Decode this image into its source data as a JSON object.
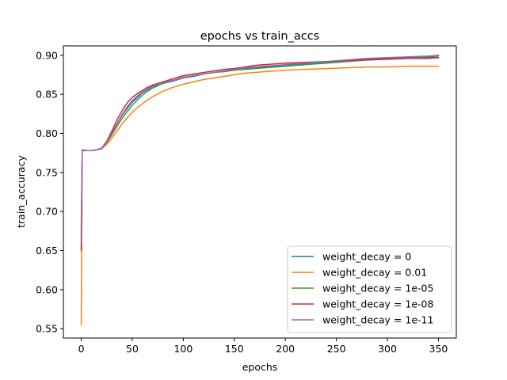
{
  "chart_data": {
    "type": "line",
    "title": "epochs vs train_accs",
    "xlabel": "epochs",
    "ylabel": "train_accuracy",
    "xlim": [
      -17.5,
      367.5
    ],
    "ylim": [
      0.538,
      0.912
    ],
    "xticks": [
      0,
      50,
      100,
      150,
      200,
      250,
      300,
      350
    ],
    "yticks": [
      0.55,
      0.6,
      0.65,
      0.7,
      0.75,
      0.8,
      0.85,
      0.9
    ],
    "ytick_labels": [
      "0.55",
      "0.60",
      "0.65",
      "0.70",
      "0.75",
      "0.80",
      "0.85",
      "0.90"
    ],
    "xtick_labels": [
      "0",
      "50",
      "100",
      "150",
      "200",
      "250",
      "300",
      "350"
    ],
    "grid": false,
    "legend_position": "lower-right",
    "series": [
      {
        "name": "weight_decay = 0",
        "color": "#1f77b4",
        "points": [
          [
            0,
            0.67
          ],
          [
            1,
            0.779
          ],
          [
            5,
            0.778
          ],
          [
            10,
            0.778
          ],
          [
            15,
            0.779
          ],
          [
            20,
            0.781
          ],
          [
            25,
            0.789
          ],
          [
            30,
            0.8
          ],
          [
            35,
            0.812
          ],
          [
            40,
            0.823
          ],
          [
            45,
            0.832
          ],
          [
            50,
            0.84
          ],
          [
            55,
            0.846
          ],
          [
            60,
            0.852
          ],
          [
            65,
            0.856
          ],
          [
            70,
            0.86
          ],
          [
            80,
            0.864
          ],
          [
            90,
            0.867
          ],
          [
            100,
            0.871
          ],
          [
            110,
            0.873
          ],
          [
            120,
            0.876
          ],
          [
            130,
            0.878
          ],
          [
            140,
            0.88
          ],
          [
            150,
            0.881
          ],
          [
            160,
            0.883
          ],
          [
            170,
            0.884
          ],
          [
            180,
            0.885
          ],
          [
            190,
            0.886
          ],
          [
            200,
            0.887
          ],
          [
            220,
            0.889
          ],
          [
            240,
            0.891
          ],
          [
            260,
            0.893
          ],
          [
            280,
            0.895
          ],
          [
            300,
            0.896
          ],
          [
            320,
            0.897
          ],
          [
            340,
            0.898
          ],
          [
            350,
            0.899
          ]
        ]
      },
      {
        "name": "weight_decay = 0.01",
        "color": "#ff7f0e",
        "points": [
          [
            0,
            0.555
          ],
          [
            1,
            0.778
          ],
          [
            5,
            0.778
          ],
          [
            10,
            0.778
          ],
          [
            15,
            0.779
          ],
          [
            20,
            0.78
          ],
          [
            25,
            0.786
          ],
          [
            30,
            0.794
          ],
          [
            35,
            0.803
          ],
          [
            40,
            0.812
          ],
          [
            45,
            0.82
          ],
          [
            50,
            0.827
          ],
          [
            55,
            0.833
          ],
          [
            60,
            0.838
          ],
          [
            65,
            0.843
          ],
          [
            70,
            0.847
          ],
          [
            80,
            0.854
          ],
          [
            90,
            0.859
          ],
          [
            100,
            0.863
          ],
          [
            110,
            0.866
          ],
          [
            120,
            0.869
          ],
          [
            130,
            0.871
          ],
          [
            140,
            0.873
          ],
          [
            150,
            0.875
          ],
          [
            160,
            0.877
          ],
          [
            170,
            0.878
          ],
          [
            180,
            0.879
          ],
          [
            200,
            0.881
          ],
          [
            220,
            0.882
          ],
          [
            240,
            0.883
          ],
          [
            260,
            0.884
          ],
          [
            280,
            0.885
          ],
          [
            300,
            0.885
          ],
          [
            320,
            0.886
          ],
          [
            340,
            0.886
          ],
          [
            350,
            0.886
          ]
        ]
      },
      {
        "name": "weight_decay = 1e-05",
        "color": "#2ca02c",
        "points": [
          [
            0,
            0.68
          ],
          [
            1,
            0.779
          ],
          [
            5,
            0.778
          ],
          [
            10,
            0.778
          ],
          [
            15,
            0.779
          ],
          [
            20,
            0.781
          ],
          [
            25,
            0.788
          ],
          [
            30,
            0.798
          ],
          [
            35,
            0.809
          ],
          [
            40,
            0.819
          ],
          [
            45,
            0.828
          ],
          [
            50,
            0.836
          ],
          [
            55,
            0.843
          ],
          [
            60,
            0.849
          ],
          [
            65,
            0.854
          ],
          [
            70,
            0.858
          ],
          [
            80,
            0.864
          ],
          [
            90,
            0.868
          ],
          [
            100,
            0.872
          ],
          [
            110,
            0.874
          ],
          [
            120,
            0.876
          ],
          [
            130,
            0.878
          ],
          [
            140,
            0.879
          ],
          [
            150,
            0.881
          ],
          [
            160,
            0.882
          ],
          [
            170,
            0.883
          ],
          [
            180,
            0.884
          ],
          [
            200,
            0.886
          ],
          [
            220,
            0.888
          ],
          [
            240,
            0.89
          ],
          [
            260,
            0.892
          ],
          [
            280,
            0.894
          ],
          [
            300,
            0.895
          ],
          [
            320,
            0.896
          ],
          [
            340,
            0.897
          ],
          [
            350,
            0.897
          ]
        ]
      },
      {
        "name": "weight_decay = 1e-08",
        "color": "#d62728",
        "points": [
          [
            0,
            0.65
          ],
          [
            1,
            0.778
          ],
          [
            5,
            0.778
          ],
          [
            10,
            0.778
          ],
          [
            15,
            0.779
          ],
          [
            20,
            0.781
          ],
          [
            25,
            0.79
          ],
          [
            30,
            0.803
          ],
          [
            35,
            0.817
          ],
          [
            40,
            0.829
          ],
          [
            45,
            0.839
          ],
          [
            50,
            0.846
          ],
          [
            55,
            0.851
          ],
          [
            60,
            0.855
          ],
          [
            65,
            0.859
          ],
          [
            70,
            0.862
          ],
          [
            80,
            0.866
          ],
          [
            90,
            0.87
          ],
          [
            100,
            0.874
          ],
          [
            110,
            0.876
          ],
          [
            120,
            0.878
          ],
          [
            130,
            0.88
          ],
          [
            140,
            0.882
          ],
          [
            150,
            0.883
          ],
          [
            160,
            0.885
          ],
          [
            170,
            0.887
          ],
          [
            180,
            0.888
          ],
          [
            200,
            0.89
          ],
          [
            220,
            0.891
          ],
          [
            240,
            0.892
          ],
          [
            260,
            0.893
          ],
          [
            280,
            0.894
          ],
          [
            300,
            0.895
          ],
          [
            320,
            0.896
          ],
          [
            340,
            0.896
          ],
          [
            350,
            0.897
          ]
        ]
      },
      {
        "name": "weight_decay = 1e-11",
        "color": "#9467bd",
        "points": [
          [
            0,
            0.66
          ],
          [
            1,
            0.779
          ],
          [
            5,
            0.778
          ],
          [
            10,
            0.778
          ],
          [
            15,
            0.779
          ],
          [
            20,
            0.781
          ],
          [
            25,
            0.789
          ],
          [
            30,
            0.8
          ],
          [
            35,
            0.812
          ],
          [
            40,
            0.824
          ],
          [
            45,
            0.834
          ],
          [
            50,
            0.842
          ],
          [
            55,
            0.848
          ],
          [
            60,
            0.853
          ],
          [
            65,
            0.857
          ],
          [
            70,
            0.861
          ],
          [
            80,
            0.865
          ],
          [
            90,
            0.868
          ],
          [
            100,
            0.871
          ],
          [
            110,
            0.874
          ],
          [
            120,
            0.876
          ],
          [
            130,
            0.878
          ],
          [
            140,
            0.88
          ],
          [
            150,
            0.882
          ],
          [
            160,
            0.884
          ],
          [
            170,
            0.885
          ],
          [
            180,
            0.886
          ],
          [
            200,
            0.888
          ],
          [
            220,
            0.89
          ],
          [
            240,
            0.892
          ],
          [
            260,
            0.894
          ],
          [
            280,
            0.896
          ],
          [
            300,
            0.897
          ],
          [
            320,
            0.898
          ],
          [
            340,
            0.899
          ],
          [
            350,
            0.9
          ]
        ]
      }
    ]
  }
}
